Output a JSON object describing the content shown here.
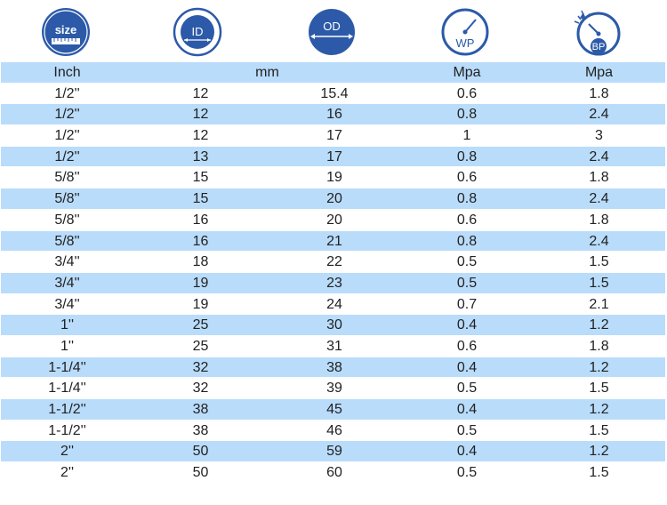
{
  "icons": [
    {
      "name": "size-icon",
      "label": "size",
      "color": "#2c5aa8"
    },
    {
      "name": "id-icon",
      "label": "ID",
      "color": "#2c5aa8"
    },
    {
      "name": "od-icon",
      "label": "OD",
      "color": "#2c5aa8"
    },
    {
      "name": "wp-icon",
      "label": "WP",
      "color": "#2c5aa8"
    },
    {
      "name": "bp-icon",
      "label": "BP",
      "color": "#2c5aa8"
    }
  ],
  "header": {
    "inch": "Inch",
    "mm": "mm",
    "wp_unit": "Mpa",
    "bp_unit": "Mpa"
  },
  "colors": {
    "row_highlight": "#b9dcfb",
    "icon_blue": "#2c5aa8"
  },
  "rows": [
    [
      "1/2''",
      "12",
      "15.4",
      "0.6",
      "1.8"
    ],
    [
      "1/2''",
      "12",
      "16",
      "0.8",
      "2.4"
    ],
    [
      "1/2''",
      "12",
      "17",
      "1",
      "3"
    ],
    [
      "1/2''",
      "13",
      "17",
      "0.8",
      "2.4"
    ],
    [
      "5/8''",
      "15",
      "19",
      "0.6",
      "1.8"
    ],
    [
      "5/8''",
      "15",
      "20",
      "0.8",
      "2.4"
    ],
    [
      "5/8''",
      "16",
      "20",
      "0.6",
      "1.8"
    ],
    [
      "5/8''",
      "16",
      "21",
      "0.8",
      "2.4"
    ],
    [
      "3/4''",
      "18",
      "22",
      "0.5",
      "1.5"
    ],
    [
      "3/4''",
      "19",
      "23",
      "0.5",
      "1.5"
    ],
    [
      "3/4''",
      "19",
      "24",
      "0.7",
      "2.1"
    ],
    [
      "1''",
      "25",
      "30",
      "0.4",
      "1.2"
    ],
    [
      "1''",
      "25",
      "31",
      "0.6",
      "1.8"
    ],
    [
      "1-1/4''",
      "32",
      "38",
      "0.4",
      "1.2"
    ],
    [
      "1-1/4''",
      "32",
      "39",
      "0.5",
      "1.5"
    ],
    [
      "1-1/2''",
      "38",
      "45",
      "0.4",
      "1.2"
    ],
    [
      "1-1/2''",
      "38",
      "46",
      "0.5",
      "1.5"
    ],
    [
      "2''",
      "50",
      "59",
      "0.4",
      "1.2"
    ],
    [
      "2''",
      "50",
      "60",
      "0.5",
      "1.5"
    ]
  ]
}
